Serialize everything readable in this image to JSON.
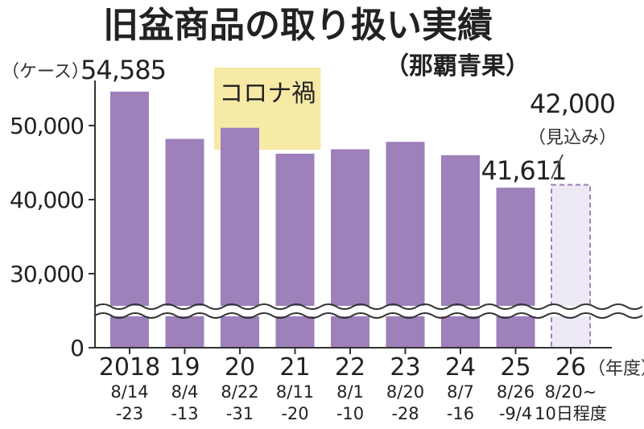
{
  "chart_data": {
    "type": "bar",
    "title": "旧盆商品の取り扱い実績",
    "subtitle": "（那覇青果）",
    "ylabel": "（ケース）",
    "xunit": "（年度）",
    "ylim": [
      0,
      55000
    ],
    "axis_break": true,
    "yticks": [
      {
        "value": 0,
        "label": "0"
      },
      {
        "value": 30000,
        "label": "30,000"
      },
      {
        "value": 40000,
        "label": "40,000"
      },
      {
        "value": 50000,
        "label": "50,000"
      }
    ],
    "categories": [
      {
        "year": "2018",
        "dates": [
          "8/14",
          "-23"
        ]
      },
      {
        "year": "19",
        "dates": [
          "8/4",
          "-13"
        ]
      },
      {
        "year": "20",
        "dates": [
          "8/22",
          "-31"
        ]
      },
      {
        "year": "21",
        "dates": [
          "8/11",
          "-20"
        ]
      },
      {
        "year": "22",
        "dates": [
          "8/1",
          "-10"
        ]
      },
      {
        "year": "23",
        "dates": [
          "8/20",
          "-28"
        ]
      },
      {
        "year": "24",
        "dates": [
          "8/7",
          "-16"
        ]
      },
      {
        "year": "25",
        "dates": [
          "8/26",
          "-9/4"
        ]
      },
      {
        "year": "26",
        "dates": [
          "8/20~",
          "10日程度"
        ]
      }
    ],
    "values": [
      54585,
      48200,
      49700,
      46200,
      46800,
      47800,
      46000,
      41611,
      42000
    ],
    "estimated": [
      false,
      false,
      false,
      false,
      false,
      false,
      false,
      false,
      true
    ],
    "data_labels": [
      {
        "index": 0,
        "text": "54,585"
      },
      {
        "index": 7,
        "text": "41,611"
      },
      {
        "index": 8,
        "text": "42,000",
        "note": "（見込み）"
      }
    ],
    "highlight": {
      "label": "コロナ禍",
      "from_index": 2,
      "to_index": 3
    },
    "colors": {
      "bar": "#9e80bb",
      "estimate_fill": "#eeeaf5",
      "estimate_stroke": "#9e80bb",
      "highlight": "#f7e9a6"
    }
  }
}
